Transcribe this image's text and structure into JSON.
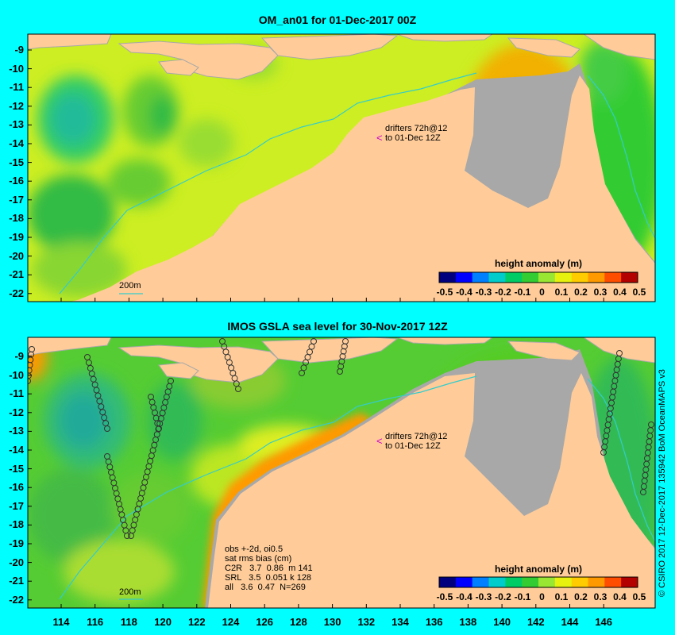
{
  "colors": {
    "background": "#00ffff",
    "land": "#ffcc99",
    "land_shadow": "#a8a8a8",
    "pointer": "#cc00cc",
    "isobath": "#33cccc"
  },
  "panels": [
    {
      "title": "OM_an01 for 01-Dec-2017 00Z",
      "legend_title": "height anomaly (m)",
      "drifter_note_line1": "drifters 72h@12",
      "drifter_note_line2": "to 01-Dec 12Z",
      "contour_label": "200m"
    },
    {
      "title": "IMOS GSLA sea level  for 30-Nov-2017 12Z",
      "legend_title": "height anomaly (m)",
      "drifter_note_line1": "drifters 72h@12",
      "drifter_note_line2": "to 01-Dec 12Z",
      "contour_label": "200m",
      "stats": "obs +-2d, oi0.5\nsat rms bias (cm)\nC2R   3.7  0.86  m 141\nSRL   3.5  0.051 k 128\nall   3.6  0.47  N=269"
    }
  ],
  "colorbar": {
    "labels": [
      "-0.5",
      "-0.4",
      "-0.3",
      "-0.2",
      "-0.1",
      "0",
      "0.1",
      "0.2",
      "0.3",
      "0.4",
      "0.5"
    ],
    "colors": [
      "#00007f",
      "#0000ff",
      "#007fff",
      "#00cccc",
      "#00cc66",
      "#33cc33",
      "#99e633",
      "#e6f20d",
      "#ffcc00",
      "#ff9900",
      "#ff4d00",
      "#b30000"
    ]
  },
  "y_labels": [
    "-9",
    "-10",
    "-11",
    "-12",
    "-13",
    "-14",
    "-15",
    "-16",
    "-17",
    "-18",
    "-19",
    "-20",
    "-21",
    "-22"
  ],
  "x_labels": [
    "114",
    "116",
    "118",
    "120",
    "122",
    "124",
    "126",
    "128",
    "130",
    "132",
    "134",
    "136",
    "138",
    "140",
    "142",
    "144",
    "146"
  ],
  "copyright": "© CSIRO 2017  12-Dec-2017 135942 BoM OceanMAPS v3"
}
